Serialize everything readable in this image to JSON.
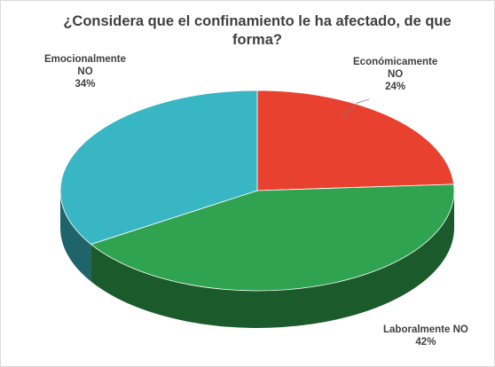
{
  "colors": {
    "economico": "#e8412f",
    "laboral": "#2fa34f",
    "emocional": "#39b6c3",
    "text": "#404040"
  },
  "chart_data": {
    "type": "pie",
    "title_line1": "¿Considera que el confinamiento le ha afectado, de que",
    "title_line2": "forma?",
    "slices": [
      {
        "name": "Económicamente NO",
        "name_line1": "Económicamente",
        "name_line2": "NO",
        "value": 24,
        "value_label": "24%"
      },
      {
        "name": "Laboralmente NO",
        "name_line1": "Laboralmente NO",
        "name_line2": "",
        "value": 42,
        "value_label": "42%"
      },
      {
        "name": "Emocionalmente NO",
        "name_line1": "Emocionalmente",
        "name_line2": "NO",
        "value": 34,
        "value_label": "34%"
      }
    ],
    "legend": "none",
    "style": "3d-pie"
  }
}
